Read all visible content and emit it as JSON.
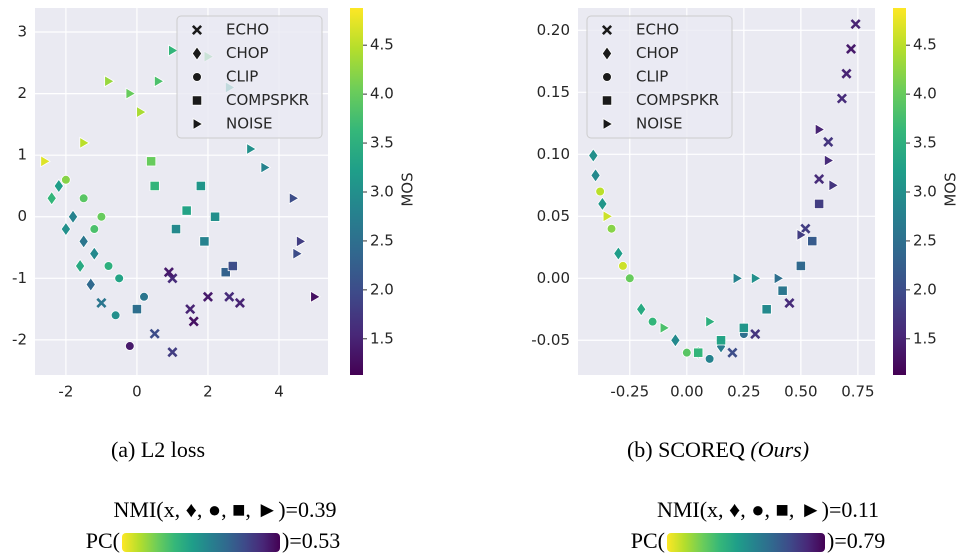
{
  "chart_data": [
    {
      "type": "scatter",
      "colormap": "viridis",
      "grid": true,
      "legend": "upper right",
      "xlim": [
        -2.87,
        5.38
      ],
      "ylim": [
        -2.57,
        3.39
      ],
      "xticks": [
        -2,
        0,
        2,
        4
      ],
      "yticks": [
        -2,
        -1,
        0,
        1,
        2,
        3
      ],
      "colorbar": {
        "label": "MOS",
        "lim": [
          1.13,
          4.88
        ],
        "ticks": [
          1.5,
          {
            "value": 2,
            "label": "2.0"
          },
          2.5,
          {
            "value": 3,
            "label": "3.0"
          },
          3.5,
          {
            "value": 4,
            "label": "4.0"
          },
          4.5
        ]
      },
      "caption": "(a) L2 loss",
      "nmi_text": "NMI(x, ♦, ●, ■, ►)=0.39",
      "pc_open": "PC(",
      "pc_close": ")=0.53",
      "series": [
        {
          "name": "ECHO",
          "marker": "x",
          "x": [
            1.0,
            1.5,
            2.0,
            2.6,
            0.5,
            1.0,
            -1.0,
            0.9,
            2.9,
            1.6
          ],
          "y": [
            -1.0,
            -1.5,
            -1.3,
            -1.3,
            -1.9,
            -2.2,
            -1.4,
            -0.9,
            -1.4,
            -1.7
          ],
          "mos": [
            1.6,
            1.5,
            1.4,
            1.6,
            2.0,
            1.8,
            2.6,
            1.4,
            1.5,
            1.3
          ]
        },
        {
          "name": "CHOP",
          "marker": "diamond",
          "x": [
            -2.2,
            -1.8,
            -1.5,
            -1.2,
            -1.6,
            -2.0,
            -1.3,
            -2.4
          ],
          "y": [
            0.5,
            0.0,
            -0.4,
            -0.6,
            -0.8,
            -0.2,
            -1.1,
            0.3
          ],
          "mos": [
            3.2,
            2.8,
            2.6,
            2.9,
            3.4,
            3.0,
            2.4,
            3.6
          ]
        },
        {
          "name": "CLIP",
          "marker": "circle",
          "x": [
            -2.0,
            -1.5,
            -1.0,
            -0.8,
            -0.5,
            0.2,
            -0.2,
            -1.2,
            -0.6
          ],
          "y": [
            0.6,
            0.3,
            0.0,
            -0.8,
            -1.0,
            -1.3,
            -2.1,
            -0.2,
            -1.6
          ],
          "mos": [
            4.2,
            3.9,
            4.0,
            3.5,
            3.3,
            2.6,
            1.4,
            3.8,
            3.0
          ]
        },
        {
          "name": "COMPSPKR",
          "marker": "square",
          "x": [
            0.4,
            0.5,
            1.4,
            1.8,
            2.2,
            2.5,
            2.7,
            1.9,
            1.1,
            0.0
          ],
          "y": [
            0.9,
            0.5,
            0.1,
            0.5,
            0.0,
            -0.9,
            -0.8,
            -0.4,
            -0.2,
            -1.5
          ],
          "mos": [
            4.0,
            3.6,
            3.3,
            3.1,
            3.0,
            2.3,
            2.0,
            2.8,
            2.9,
            2.5
          ]
        },
        {
          "name": "NOISE",
          "marker": "triangle",
          "x": [
            -2.6,
            -1.5,
            -0.8,
            -0.2,
            0.6,
            1.0,
            2.0,
            2.6,
            3.2,
            3.6,
            4.4,
            4.6,
            4.5,
            5.0,
            0.1
          ],
          "y": [
            0.9,
            1.2,
            2.2,
            2.0,
            2.2,
            2.7,
            2.6,
            2.1,
            1.1,
            0.8,
            0.3,
            -0.4,
            -0.6,
            -1.3,
            1.7
          ],
          "mos": [
            4.7,
            4.5,
            4.3,
            4.0,
            3.8,
            3.6,
            3.8,
            3.2,
            3.0,
            2.8,
            2.0,
            1.8,
            2.0,
            1.3,
            4.4
          ]
        }
      ]
    },
    {
      "type": "scatter",
      "colormap": "viridis",
      "grid": true,
      "legend": "upper left",
      "xlim": [
        -0.477,
        0.825
      ],
      "ylim": [
        -0.078,
        0.218
      ],
      "xticks": [
        -0.25,
        {
          "value": 0,
          "label": "0.00"
        },
        0.25,
        {
          "value": 0.5,
          "label": "0.50"
        },
        0.75
      ],
      "yticks": [
        -0.05,
        {
          "value": 0,
          "label": "0.00"
        },
        0.05,
        {
          "value": 0.1,
          "label": "0.10"
        },
        0.15,
        {
          "value": 0.2,
          "label": "0.20"
        }
      ],
      "colorbar": {
        "label": "MOS",
        "lim": [
          1.13,
          4.88
        ],
        "ticks": [
          1.5,
          {
            "value": 2,
            "label": "2.0"
          },
          2.5,
          {
            "value": 3,
            "label": "3.0"
          },
          3.5,
          {
            "value": 4,
            "label": "4.0"
          },
          4.5
        ]
      },
      "caption": "(b) SCOREQ",
      "caption_note": "(Ours)",
      "nmi_text": "NMI(x, ♦, ●, ■, ►)=0.11",
      "pc_open": "PC(",
      "pc_close": ")=0.79",
      "series": [
        {
          "name": "ECHO",
          "marker": "x",
          "x": [
            0.74,
            0.72,
            0.7,
            0.68,
            0.62,
            0.58,
            0.52,
            0.45,
            0.3,
            0.2
          ],
          "y": [
            0.205,
            0.185,
            0.165,
            0.145,
            0.11,
            0.08,
            0.04,
            -0.02,
            -0.045,
            -0.06
          ],
          "mos": [
            1.5,
            1.4,
            1.5,
            1.6,
            1.7,
            1.6,
            1.8,
            1.6,
            1.7,
            2.0
          ]
        },
        {
          "name": "CHOP",
          "marker": "diamond",
          "x": [
            -0.41,
            -0.4,
            -0.37,
            -0.3,
            -0.2,
            -0.05,
            0.05,
            0.15
          ],
          "y": [
            0.099,
            0.083,
            0.06,
            0.02,
            -0.025,
            -0.05,
            -0.06,
            -0.055
          ],
          "mos": [
            3.0,
            2.9,
            3.1,
            3.2,
            3.4,
            2.9,
            3.3,
            2.7
          ]
        },
        {
          "name": "CLIP",
          "marker": "circle",
          "x": [
            -0.38,
            -0.33,
            -0.25,
            -0.15,
            0.0,
            0.1,
            0.25,
            -0.28
          ],
          "y": [
            0.07,
            0.04,
            0.0,
            -0.035,
            -0.06,
            -0.065,
            -0.045,
            0.01
          ],
          "mos": [
            4.5,
            4.2,
            4.0,
            3.6,
            3.9,
            2.8,
            2.5,
            4.6
          ]
        },
        {
          "name": "COMPSPKR",
          "marker": "square",
          "x": [
            0.58,
            0.55,
            0.5,
            0.42,
            0.35,
            0.25,
            0.15,
            0.05
          ],
          "y": [
            0.06,
            0.03,
            0.01,
            -0.01,
            -0.025,
            -0.04,
            -0.05,
            -0.06
          ],
          "mos": [
            1.8,
            2.2,
            2.4,
            2.6,
            2.9,
            3.1,
            3.3,
            3.6
          ]
        },
        {
          "name": "NOISE",
          "marker": "triangle",
          "x": [
            -0.35,
            -0.1,
            0.1,
            0.22,
            0.3,
            0.4,
            0.5,
            0.58,
            0.62,
            0.64
          ],
          "y": [
            0.05,
            -0.04,
            -0.035,
            0.0,
            0.0,
            0.0,
            0.035,
            0.12,
            0.095,
            0.075
          ],
          "mos": [
            4.6,
            3.8,
            3.5,
            2.8,
            3.0,
            2.5,
            1.8,
            1.5,
            1.6,
            1.7
          ]
        }
      ]
    }
  ]
}
